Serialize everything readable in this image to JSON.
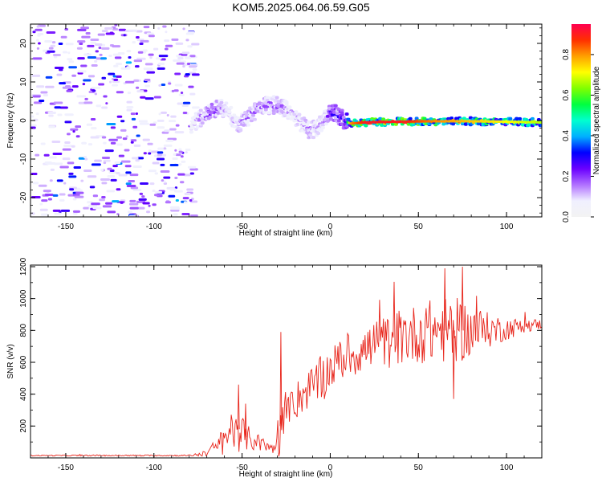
{
  "title": "KOM5.2025.064.06.59.G05",
  "colors": {
    "snr_line": "#e8261c",
    "background": "#ffffff",
    "axis": "#000000",
    "colorbar_stops": [
      "#f3f3f3",
      "#f0f0ff",
      "#b070ff",
      "#6a00ff",
      "#0000ff",
      "#00b0ff",
      "#00ffd0",
      "#00ff40",
      "#80ff00",
      "#ffff00",
      "#ffa000",
      "#ff3000",
      "#ff0050"
    ]
  },
  "chart_data": [
    {
      "type": "heatmap",
      "title": "",
      "xlabel": "Height of straight line (km)",
      "ylabel": "Frequency (Hz)",
      "xlim": [
        -170,
        120
      ],
      "ylim": [
        -25,
        25
      ],
      "xticks": [
        -150,
        -100,
        -50,
        0,
        50,
        100
      ],
      "xtick_labels": [
        "-150",
        "-100",
        "-50",
        "0",
        "50",
        "100"
      ],
      "yticks": [
        -20,
        -10,
        0,
        10,
        20
      ],
      "ytick_labels": [
        "-20",
        "-10",
        "0",
        "10",
        "20"
      ],
      "colorbar": {
        "label": "Normalized spectral amplitude",
        "range": [
          0,
          0.95
        ],
        "ticks": [
          0.0,
          0.2,
          0.4,
          0.6,
          0.8
        ],
        "tick_labels": [
          "0.0",
          "0.2",
          "0.4",
          "0.6",
          "0.8"
        ]
      },
      "noise_region_x": [
        -170,
        -78
      ],
      "ridge": {
        "x": [
          -79,
          -76,
          -72,
          -68,
          -64,
          -60,
          -56,
          -52,
          -48,
          -44,
          -40,
          -36,
          -32,
          -28,
          -24,
          -20,
          -16,
          -12,
          -8,
          -4,
          0,
          4,
          8,
          12,
          20,
          40,
          60,
          80,
          100,
          120
        ],
        "y": [
          -2,
          0,
          1,
          2,
          3,
          3,
          1,
          -1,
          0,
          2,
          3.5,
          4,
          4,
          3.5,
          2.5,
          1,
          -1,
          -2.5,
          -2,
          0,
          2,
          1.5,
          0,
          -0.8,
          -0.5,
          -0.3,
          -0.2,
          -0.2,
          -0.3,
          -0.5
        ],
        "amplitude": [
          0.1,
          0.15,
          0.2,
          0.25,
          0.2,
          0.15,
          0.15,
          0.18,
          0.2,
          0.2,
          0.2,
          0.2,
          0.2,
          0.2,
          0.15,
          0.15,
          0.15,
          0.2,
          0.15,
          0.15,
          0.3,
          0.3,
          0.3,
          0.85,
          0.95,
          0.95,
          0.85,
          0.8,
          0.75,
          0.7
        ]
      }
    },
    {
      "type": "line",
      "title": "",
      "xlabel": "Height of straight line (km)",
      "ylabel": "SNR (v/v)",
      "xlim": [
        -170,
        120
      ],
      "ylim": [
        0,
        1210
      ],
      "xticks": [
        -150,
        -100,
        -50,
        0,
        50,
        100
      ],
      "xtick_labels": [
        "-150",
        "-100",
        "-50",
        "0",
        "50",
        "100"
      ],
      "yticks": [
        200,
        400,
        600,
        800,
        1000,
        1200
      ],
      "ytick_labels": [
        "200",
        "400",
        "600",
        "800",
        "1000",
        "1200"
      ],
      "series": [
        {
          "name": "SNR",
          "envelope": {
            "x": [
              -170,
              -80,
              -72,
              -66,
              -60,
              -56,
              -52,
              -48,
              -44,
              -40,
              -36,
              -32,
              -30,
              -28,
              -26,
              -24,
              -20,
              -16,
              -10,
              -4,
              0,
              4,
              10,
              20,
              30,
              40,
              50,
              60,
              70,
              75,
              80,
              90,
              100,
              110,
              120
            ],
            "baseline": [
              15,
              15,
              25,
              60,
              120,
              180,
              180,
              130,
              110,
              90,
              70,
              60,
              150,
              200,
              250,
              300,
              350,
              400,
              450,
              500,
              560,
              600,
              640,
              680,
              720,
              760,
              780,
              800,
              800,
              800,
              800,
              800,
              810,
              830,
              840
            ],
            "amplitude": [
              6,
              8,
              30,
              80,
              140,
              250,
              260,
              160,
              120,
              100,
              80,
              60,
              120,
              560,
              180,
              150,
              220,
              230,
              230,
              260,
              250,
              230,
              250,
              280,
              300,
              330,
              340,
              380,
              380,
              360,
              320,
              200,
              130,
              80,
              60
            ]
          },
          "peaks": [
            {
              "x": -52,
              "y": 460
            },
            {
              "x": -28,
              "y": 790
            },
            {
              "x": -48,
              "y": 340
            },
            {
              "x": 65,
              "y": 1190
            },
            {
              "x": 75,
              "y": 1200
            },
            {
              "x": 70,
              "y": 370
            }
          ]
        }
      ]
    }
  ]
}
